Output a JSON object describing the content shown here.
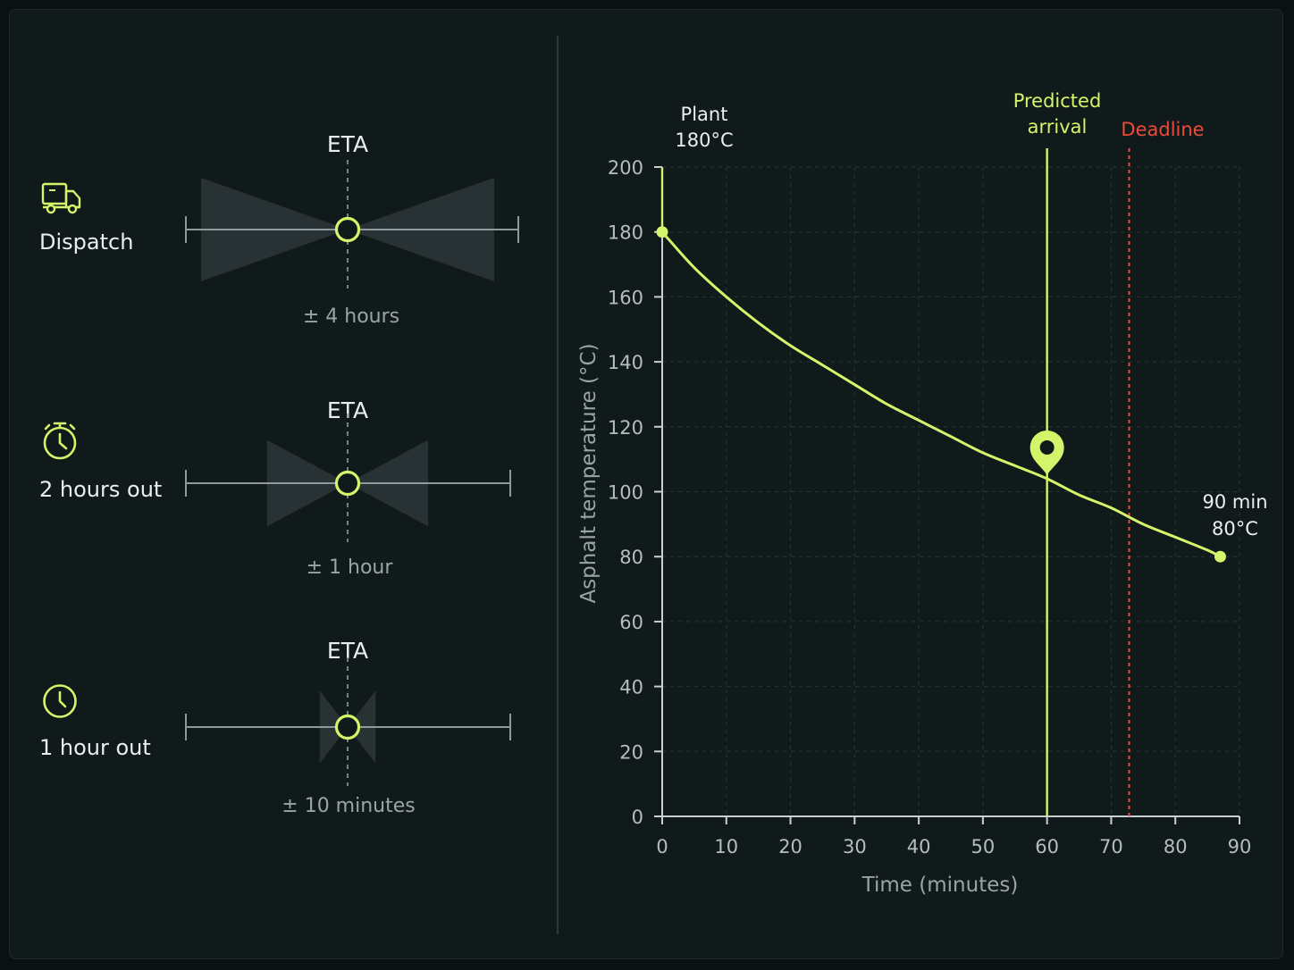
{
  "colors": {
    "accent": "#d4f56a",
    "deadline": "#f0493b",
    "axis": "#c9d0d1",
    "grid": "#2a3536",
    "band": "#2a3335"
  },
  "left_panel": {
    "rows": [
      {
        "icon": "truck-icon",
        "label": "Dispatch",
        "eta_label": "ETA",
        "uncertainty": "± 4 hours",
        "spread_fraction": 1.0
      },
      {
        "icon": "stopwatch-icon",
        "label": "2 hours out",
        "eta_label": "ETA",
        "uncertainty": "± 1 hour",
        "spread_fraction": 0.55
      },
      {
        "icon": "clock-icon",
        "label": "1 hour out",
        "eta_label": "ETA",
        "uncertainty": "± 10 minutes",
        "spread_fraction": 0.19
      }
    ]
  },
  "chart_data": {
    "type": "line",
    "xlabel": "Time (minutes)",
    "ylabel": "Asphalt temperature (°C)",
    "xlim": [
      0,
      90
    ],
    "ylim": [
      0,
      200
    ],
    "x_ticks": [
      0,
      10,
      20,
      30,
      40,
      50,
      60,
      70,
      80,
      90
    ],
    "y_ticks": [
      0,
      20,
      40,
      60,
      80,
      100,
      120,
      140,
      160,
      180,
      200
    ],
    "grid": true,
    "series": [
      {
        "x": [
          0,
          5,
          10,
          15,
          20,
          25,
          30,
          35,
          40,
          45,
          50,
          55,
          60,
          65,
          70,
          75,
          80,
          85,
          87
        ],
        "y": [
          180,
          169,
          160,
          152,
          145,
          139,
          133,
          127,
          122,
          117,
          112,
          108,
          104,
          99,
          95,
          90,
          86,
          82,
          80
        ]
      }
    ],
    "start_point": {
      "x": 0,
      "y": 180,
      "label_line1": "Plant",
      "label_line2": "180°C"
    },
    "end_point": {
      "x": 87,
      "y": 80,
      "label_line1": "90 min",
      "label_line2": "80°C"
    },
    "predicted_arrival": {
      "x": 60,
      "y": 104,
      "label_line1": "Predicted",
      "label_line2": "arrival"
    },
    "deadline": {
      "x": 72.8,
      "label": "Deadline"
    }
  }
}
